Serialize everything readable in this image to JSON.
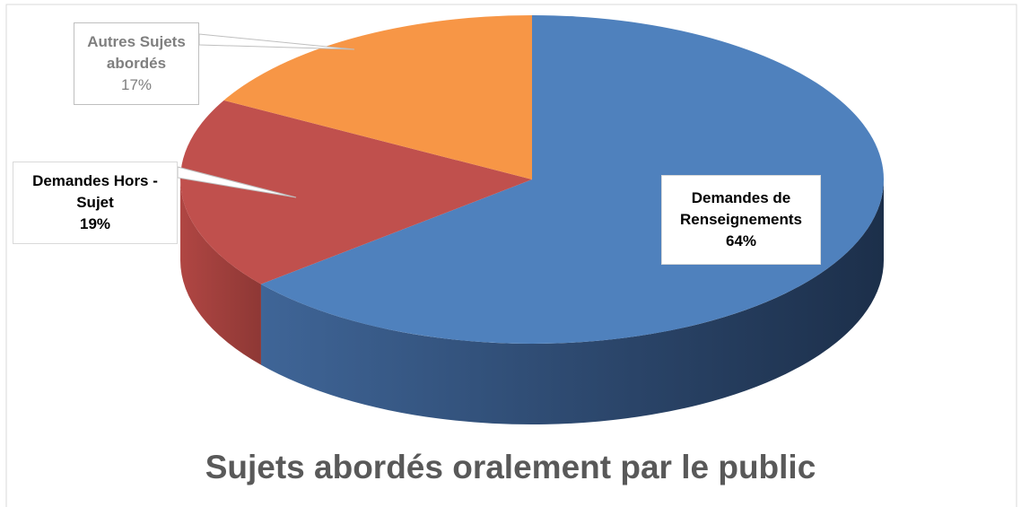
{
  "chart_data": {
    "type": "pie3d",
    "title": "Sujets abordés oralement par le public",
    "categories": [
      "Demandes de Renseignements",
      "Demandes Hors - Sujet",
      "Autres Sujets abordés"
    ],
    "values": [
      64,
      19,
      17
    ],
    "value_labels": [
      "64%",
      "19%",
      "17%"
    ],
    "colors": [
      "#4f81bd",
      "#c0504d",
      "#f79646"
    ]
  }
}
